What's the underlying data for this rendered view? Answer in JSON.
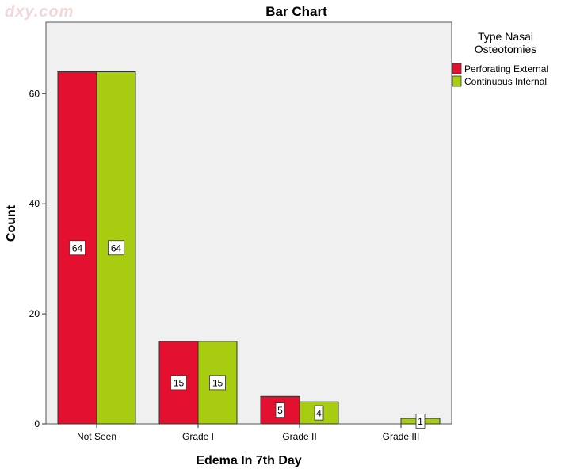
{
  "watermark": "dxy.com",
  "chart_data": {
    "type": "bar",
    "title": "Bar Chart",
    "xlabel": "Edema In 7th Day",
    "ylabel": "Count",
    "categories": [
      "Not Seen",
      "Grade I",
      "Grade II",
      "Grade III"
    ],
    "ylim": [
      0,
      73
    ],
    "yticks": [
      0,
      20,
      40,
      60
    ],
    "legend": {
      "title_line1": "Type  Nasal",
      "title_line2": "Osteotomies",
      "placement": "top-right, outside plot"
    },
    "series": [
      {
        "name": "Perforating External",
        "color": "#e3112f",
        "values": [
          64,
          15,
          5,
          0
        ],
        "labels": [
          "64",
          "15",
          "5",
          null
        ]
      },
      {
        "name": "Continuous Internal",
        "color": "#a8cc10",
        "values": [
          64,
          15,
          4,
          1
        ],
        "labels": [
          "64",
          "15",
          "4",
          "1"
        ]
      }
    ],
    "plot_background": "#f0f0f0",
    "grid": false
  }
}
